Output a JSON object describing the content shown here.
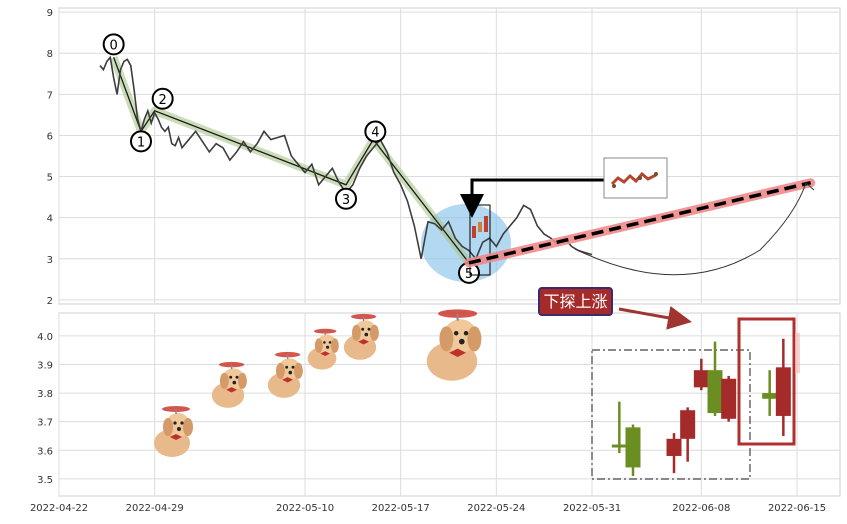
{
  "chart_data": [
    {
      "type": "line",
      "panel": "upper",
      "title": "",
      "xlabel": "",
      "ylabel": "",
      "ylim": [
        1.9,
        9.1
      ],
      "yticks": [
        2,
        3,
        4,
        5,
        6,
        7,
        8,
        9
      ],
      "grid": true,
      "series": [
        {
          "values": [
            [
              "2022-04-25",
              7.7
            ],
            [
              "2022-04-25T06",
              7.6
            ],
            [
              "2022-04-25T12",
              7.8
            ],
            [
              "2022-04-25T18",
              7.9
            ],
            [
              "2022-04-26",
              7.4
            ],
            [
              "2022-04-26T06",
              7.0
            ],
            [
              "2022-04-26T12",
              7.6
            ],
            [
              "2022-04-26T18",
              7.8
            ],
            [
              "2022-04-27",
              7.85
            ],
            [
              "2022-04-27T06",
              7.7
            ],
            [
              "2022-04-27T12",
              7.1
            ],
            [
              "2022-04-27T18",
              6.4
            ],
            [
              "2022-04-28",
              6.1
            ],
            [
              "2022-04-28T06",
              6.4
            ],
            [
              "2022-04-28T12",
              6.6
            ],
            [
              "2022-04-28T18",
              6.3
            ],
            [
              "2022-04-29",
              6.55
            ],
            [
              "2022-04-29T06",
              6.4
            ],
            [
              "2022-04-29T12",
              6.2
            ],
            [
              "2022-04-29T18",
              6.1
            ],
            [
              "2022-04-30",
              6.2
            ],
            [
              "2022-04-30T06",
              5.8
            ],
            [
              "2022-04-30T12",
              5.75
            ],
            [
              "2022-04-30T18",
              5.95
            ],
            [
              "2022-05-01",
              5.7
            ],
            [
              "2022-05-01T12",
              5.9
            ],
            [
              "2022-05-02",
              6.1
            ],
            [
              "2022-05-02T12",
              5.85
            ],
            [
              "2022-05-03",
              5.6
            ],
            [
              "2022-05-03T12",
              5.8
            ],
            [
              "2022-05-04",
              5.7
            ],
            [
              "2022-05-04T12",
              5.4
            ],
            [
              "2022-05-05",
              5.6
            ],
            [
              "2022-05-05T12",
              5.85
            ],
            [
              "2022-05-06",
              5.6
            ],
            [
              "2022-05-06T12",
              5.8
            ],
            [
              "2022-05-07",
              6.1
            ],
            [
              "2022-05-07T12",
              5.9
            ],
            [
              "2022-05-08",
              5.95
            ],
            [
              "2022-05-08T12",
              6.0
            ],
            [
              "2022-05-09",
              5.5
            ],
            [
              "2022-05-09T12",
              5.3
            ],
            [
              "2022-05-10",
              5.1
            ],
            [
              "2022-05-10T12",
              5.3
            ],
            [
              "2022-05-11",
              4.8
            ],
            [
              "2022-05-11T12",
              5.0
            ],
            [
              "2022-05-12",
              5.2
            ],
            [
              "2022-05-12T12",
              4.85
            ],
            [
              "2022-05-13",
              4.6
            ],
            [
              "2022-05-13T12",
              4.8
            ],
            [
              "2022-05-14",
              5.2
            ],
            [
              "2022-05-14T12",
              5.5
            ],
            [
              "2022-05-15",
              5.7
            ],
            [
              "2022-05-15T12",
              5.9
            ],
            [
              "2022-05-16",
              5.6
            ],
            [
              "2022-05-16T12",
              5.1
            ],
            [
              "2022-05-17",
              4.8
            ],
            [
              "2022-05-17T12",
              4.4
            ],
            [
              "2022-05-18",
              3.8
            ],
            [
              "2022-05-18T12",
              3.0
            ],
            [
              "2022-05-19",
              3.9
            ],
            [
              "2022-05-19T12",
              3.85
            ],
            [
              "2022-05-20",
              3.7
            ],
            [
              "2022-05-20T12",
              3.9
            ],
            [
              "2022-05-21",
              3.5
            ],
            [
              "2022-05-21T12",
              3.3
            ],
            [
              "2022-05-22",
              3.2
            ],
            [
              "2022-05-22T12",
              3.0
            ],
            [
              "2022-05-23",
              3.4
            ],
            [
              "2022-05-23T12",
              3.5
            ],
            [
              "2022-05-24",
              3.3
            ],
            [
              "2022-05-24T12",
              3.6
            ],
            [
              "2022-05-25",
              3.8
            ],
            [
              "2022-05-25T12",
              4.0
            ],
            [
              "2022-05-26",
              4.3
            ],
            [
              "2022-05-26T12",
              4.2
            ],
            [
              "2022-05-27",
              3.8
            ],
            [
              "2022-05-27T12",
              3.6
            ],
            [
              "2022-05-28",
              3.5
            ],
            [
              "2022-05-28T12",
              3.35
            ],
            [
              "2022-05-29",
              3.5
            ],
            [
              "2022-05-29T12",
              3.3
            ],
            [
              "2022-05-30",
              3.2
            ],
            [
              "2022-05-30T12",
              3.15
            ],
            [
              "2022-05-31",
              3.1
            ]
          ]
        }
      ],
      "annotations": {
        "zigzag_points": [
          {
            "label": "0",
            "x": "2022-04-26",
            "y": 7.9
          },
          {
            "label": "1",
            "x": "2022-04-28",
            "y": 6.1
          },
          {
            "label": "2",
            "x": "2022-04-29",
            "y": 6.6
          },
          {
            "label": "3",
            "x": "2022-05-13",
            "y": 4.8
          },
          {
            "label": "4",
            "x": "2022-05-15",
            "y": 5.9
          },
          {
            "label": "5",
            "x": "2022-05-22",
            "y": 2.9
          }
        ],
        "trend_line": {
          "from": [
            "2022-05-22",
            2.9
          ],
          "to": [
            "2022-06-16",
            4.85
          ]
        },
        "arrow_target": [
          "2022-05-24",
          4.4
        ]
      }
    },
    {
      "type": "candlestick",
      "panel": "lower",
      "title": "",
      "xlabel": "",
      "ylabel": "",
      "ylim": [
        3.44,
        4.08
      ],
      "yticks": [
        3.5,
        3.6,
        3.7,
        3.8,
        3.9,
        4.0
      ],
      "grid": true,
      "x_ticks": [
        "2022-04-22",
        "2022-04-29",
        "2022-05-10",
        "2022-05-17",
        "2022-05-24",
        "2022-05-31",
        "2022-06-08",
        "2022-06-15"
      ],
      "candles": [
        {
          "x": "2022-06-02",
          "open": 3.62,
          "close": 3.61,
          "high": 3.77,
          "low": 3.59
        },
        {
          "x": "2022-06-03",
          "open": 3.68,
          "close": 3.54,
          "high": 3.69,
          "low": 3.51
        },
        {
          "x": "2022-06-06",
          "open": 3.58,
          "close": 3.64,
          "high": 3.66,
          "low": 3.52
        },
        {
          "x": "2022-06-07",
          "open": 3.64,
          "close": 3.74,
          "high": 3.75,
          "low": 3.56
        },
        {
          "x": "2022-06-08",
          "open": 3.82,
          "close": 3.88,
          "high": 3.92,
          "low": 3.81
        },
        {
          "x": "2022-06-09",
          "open": 3.88,
          "close": 3.73,
          "high": 3.98,
          "low": 3.72
        },
        {
          "x": "2022-06-10",
          "open": 3.71,
          "close": 3.85,
          "high": 3.86,
          "low": 3.7
        },
        {
          "x": "2022-06-13",
          "open": 3.8,
          "close": 3.78,
          "high": 3.88,
          "low": 3.72
        },
        {
          "x": "2022-06-14",
          "open": 3.72,
          "close": 3.89,
          "high": 3.99,
          "low": 3.65
        }
      ],
      "annotation_label": "下探上涨",
      "colors": {
        "up": "#a52a2a",
        "down": "#6b8e23"
      }
    }
  ]
}
